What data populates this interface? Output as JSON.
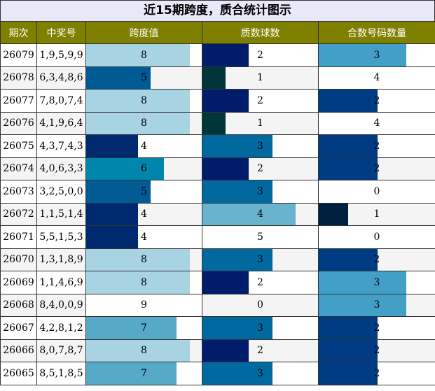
{
  "title": "近15期跨度，质合统计图示",
  "headers": [
    "期次",
    "中奖号",
    "跨度值",
    "质数球数",
    "合数号码数量"
  ],
  "colors": {
    "header_bg": "#808000",
    "title_bg": "#e8e8f8",
    "span": {
      "4": "#002a70",
      "5": "#005a94",
      "6": "#0086ad",
      "7": "#56a9c7",
      "8": "#a8d3e3",
      "9": "#ffffff"
    },
    "prime": {
      "0": "#ffffff",
      "1": "#00353a",
      "2": "#001c6a",
      "3": "#006aa0",
      "4": "#6ab3cf",
      "5": "#ffffff"
    },
    "composite": {
      "0": "#ffffff",
      "1": "#00203f",
      "2": "#003c84",
      "3": "#42a0c6",
      "4": "#ffffff"
    }
  },
  "chart_data": {
    "type": "table",
    "title": "近15期跨度，质合统计图示",
    "columns": [
      "期次",
      "中奖号",
      "跨度值",
      "质数球数",
      "合数号码数量"
    ],
    "rows": [
      {
        "issue": "26079",
        "numbers": "1,9,5,9,9",
        "span": 8,
        "primes": 2,
        "composites": 3
      },
      {
        "issue": "26078",
        "numbers": "6,3,4,8,6",
        "span": 5,
        "primes": 1,
        "composites": 4
      },
      {
        "issue": "26077",
        "numbers": "7,8,0,7,4",
        "span": 8,
        "primes": 2,
        "composites": 2
      },
      {
        "issue": "26076",
        "numbers": "4,1,9,6,4",
        "span": 8,
        "primes": 1,
        "composites": 4
      },
      {
        "issue": "26075",
        "numbers": "4,3,7,4,3",
        "span": 4,
        "primes": 3,
        "composites": 2
      },
      {
        "issue": "26074",
        "numbers": "4,0,6,3,3",
        "span": 6,
        "primes": 2,
        "composites": 2
      },
      {
        "issue": "26073",
        "numbers": "3,2,5,0,0",
        "span": 5,
        "primes": 3,
        "composites": 0
      },
      {
        "issue": "26072",
        "numbers": "1,1,5,1,4",
        "span": 4,
        "primes": 4,
        "composites": 1
      },
      {
        "issue": "26071",
        "numbers": "5,5,1,5,3",
        "span": 4,
        "primes": 5,
        "composites": 0
      },
      {
        "issue": "26070",
        "numbers": "1,3,1,8,9",
        "span": 8,
        "primes": 3,
        "composites": 2
      },
      {
        "issue": "26069",
        "numbers": "1,1,4,6,9",
        "span": 8,
        "primes": 2,
        "composites": 3
      },
      {
        "issue": "26068",
        "numbers": "8,4,0,0,9",
        "span": 9,
        "primes": 0,
        "composites": 3
      },
      {
        "issue": "26067",
        "numbers": "4,2,8,1,2",
        "span": 7,
        "primes": 3,
        "composites": 2
      },
      {
        "issue": "26066",
        "numbers": "8,0,7,8,7",
        "span": 8,
        "primes": 2,
        "composites": 2
      },
      {
        "issue": "26065",
        "numbers": "8,5,1,8,5",
        "span": 7,
        "primes": 3,
        "composites": 2
      }
    ],
    "span_max": 9,
    "primes_max": 5,
    "composites_max": 4
  }
}
